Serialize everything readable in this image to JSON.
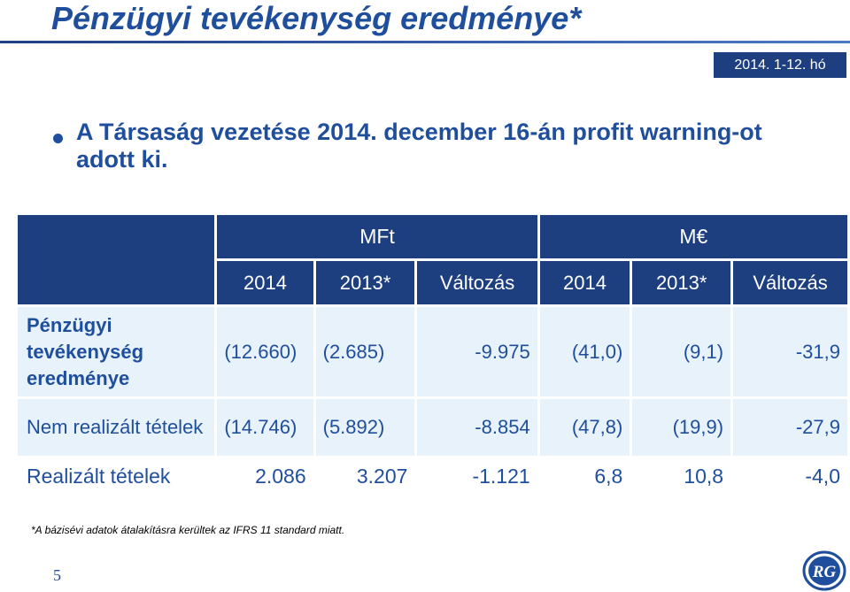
{
  "slide": {
    "title": "Pénzügyi tevékenység eredménye*",
    "period": "2014. 1-12. hó",
    "bullet": "A Társaság vezetése 2014. december 16-án profit warning-ot adott ki.",
    "footnote": "*A bázisévi adatok átalakításra kerültek az IFRS 11 standard miatt.",
    "page_number": "5",
    "logo": {
      "icon": "rg-logo",
      "text": "RG"
    },
    "colors": {
      "primary": "#1f4e9c",
      "header_bg": "#1e3f7f",
      "row_bg": "#e8f2fa"
    }
  },
  "table": {
    "currency_groups": [
      "MFt",
      "M€"
    ],
    "columns": [
      "2014",
      "2013*",
      "Változás",
      "2014",
      "2013*",
      "Változás"
    ],
    "rows": [
      {
        "label": "Pénzügyi tevékenység eredménye",
        "values": [
          "(12.660)",
          "(2.685)",
          "-9.975",
          "(41,0)",
          "(9,1)",
          "-31,9"
        ]
      },
      {
        "label": "Nem realizált tételek",
        "values": [
          "(14.746)",
          "(5.892)",
          "-8.854",
          "(47,8)",
          "(19,9)",
          "-27,9"
        ]
      },
      {
        "label": "Realizált tételek",
        "values": [
          "2.086",
          "3.207",
          "-1.121",
          "6,8",
          "10,8",
          "-4,0"
        ]
      }
    ]
  }
}
